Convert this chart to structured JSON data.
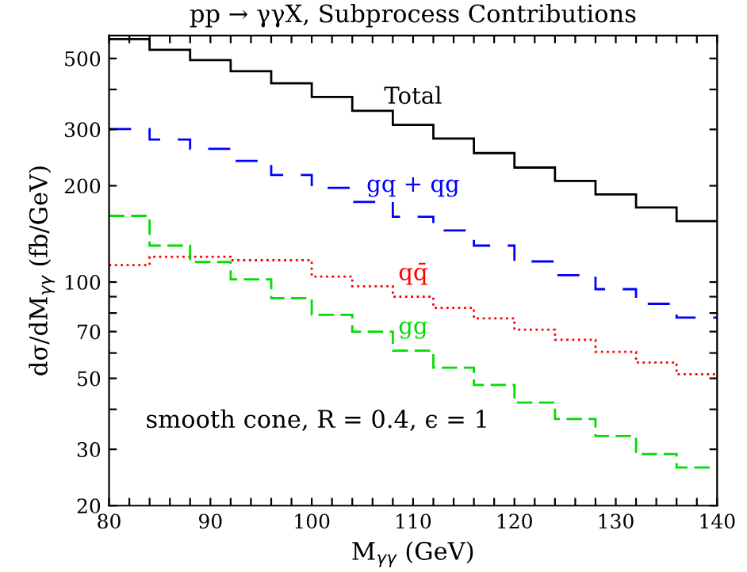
{
  "chart_data": {
    "type": "histogram",
    "title": "pp → γγX, Subprocess Contributions",
    "xlabel": "M$_{γγ}$ (GeV)",
    "ylabel": "dσ/dM$_{γγ}$ (fb/GeV)",
    "annotations": [
      "smooth cone, R = 0.4, ϵ = 1"
    ],
    "bins": [
      80,
      84,
      88,
      92,
      96,
      100,
      104,
      108,
      112,
      116,
      120,
      124,
      128,
      132,
      136,
      140
    ],
    "series": [
      {
        "name": "Total",
        "color": "#000000",
        "line_style": "solid",
        "values": [
          575,
          532,
          494,
          456,
          418,
          379,
          343,
          310,
          281,
          253,
          228,
          207,
          188,
          171,
          155
        ]
      },
      {
        "name": "gq + qg",
        "color": "#0000ff",
        "line_style": "dashed",
        "values": [
          301,
          279,
          261,
          239,
          216,
          197,
          178,
          160,
          145,
          130,
          116,
          105,
          95,
          85.5,
          77.4
        ]
      },
      {
        "name": "qq̄",
        "color": "#ff0000",
        "line_style": "dotted",
        "values": [
          113,
          120,
          120,
          117,
          117,
          104,
          97,
          90,
          83,
          77,
          71,
          66,
          60.5,
          56,
          51.5
        ]
      },
      {
        "name": "gg",
        "color": "#00dd00",
        "line_style": "dashed",
        "values": [
          161,
          130,
          115.5,
          102,
          89,
          79,
          70,
          61,
          54,
          47.7,
          42,
          37.3,
          33,
          29,
          26.3
        ]
      }
    ],
    "log": "y",
    "xlim": [
      80,
      140
    ],
    "ylim": [
      20,
      590
    ],
    "xticks": [
      80,
      {
        "value": 82,
        "label": null
      },
      {
        "value": 84,
        "label": null
      },
      {
        "value": 86,
        "label": null
      },
      {
        "value": 88,
        "label": null
      },
      90,
      {
        "value": 92,
        "label": null
      },
      {
        "value": 94,
        "label": null
      },
      {
        "value": 96,
        "label": null
      },
      {
        "value": 98,
        "label": null
      },
      100,
      {
        "value": 102,
        "label": null
      },
      {
        "value": 104,
        "label": null
      },
      {
        "value": 106,
        "label": null
      },
      {
        "value": 108,
        "label": null
      },
      110,
      {
        "value": 112,
        "label": null
      },
      {
        "value": 114,
        "label": null
      },
      {
        "value": 116,
        "label": null
      },
      {
        "value": 118,
        "label": null
      },
      120,
      {
        "value": 122,
        "label": null
      },
      {
        "value": 124,
        "label": null
      },
      {
        "value": 126,
        "label": null
      },
      {
        "value": 128,
        "label": null
      },
      130,
      {
        "value": 132,
        "label": null
      },
      {
        "value": 134,
        "label": null
      },
      {
        "value": 136,
        "label": null
      },
      {
        "value": 138,
        "label": null
      },
      140
    ],
    "yticks": [
      20,
      30,
      {
        "value": 40,
        "label": null
      },
      50,
      {
        "value": 60,
        "label": null
      },
      70,
      {
        "value": 80,
        "label": null
      },
      {
        "value": 90,
        "label": null
      },
      100,
      200,
      300,
      {
        "value": 400,
        "label": null
      },
      500
    ],
    "grid": false,
    "legend": false
  }
}
